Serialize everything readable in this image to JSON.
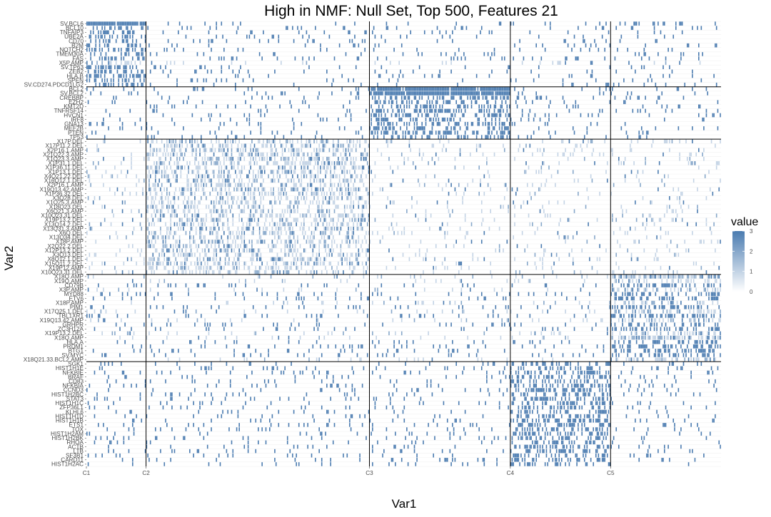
{
  "chart_data": {
    "type": "heatmap",
    "title": "High in NMF: Null Set, Top 500, Features 21",
    "xlabel": "Var1",
    "ylabel": "Var2",
    "legend_title": "value",
    "legend_ticks": [
      0,
      1,
      2,
      3
    ],
    "value_range": [
      0,
      3
    ],
    "colors": {
      "low": "#ffffff",
      "high": "#4a7bb0",
      "grid": "#ebebeb",
      "separator": "#000000"
    },
    "x_ticks": [
      {
        "label": "C1",
        "sample": 0
      },
      {
        "label": "C2",
        "sample": 47
      },
      {
        "label": "C3",
        "sample": 223
      },
      {
        "label": "C4",
        "sample": 334
      },
      {
        "label": "C5",
        "sample": 413
      }
    ],
    "n_samples": 500,
    "y_tick_labels": [
      "SV.BCL6",
      "BCL10",
      "TNFAIP3",
      "UBE2A",
      "CD70",
      "B2M",
      "NOTCH2",
      "TMEM30A",
      "FAS",
      "X5P.AMP",
      "SV.TP63",
      "ZEB2",
      "HLA.B",
      "SPEN",
      "SV.CD274.PDCD1LG2",
      "BCL2",
      "SV.BCL2",
      "CREBBP",
      "EZH2",
      "KMT2D",
      "TNFRSF14",
      "HVCN1",
      "IRF8",
      "GNA13",
      "MEF2B",
      "PTEN",
      "TP53",
      "X17P.DEL",
      "X17P11.2.DEL",
      "X2P16.1.AMP",
      "X21Q22.3.AMP",
      "X1Q23.3.AMP",
      "X1P31.1.DEL",
      "X1P36.11.DEL",
      "X1P13.1.DEL",
      "X4Q21.22.DEL",
      "X16Q12.1.DEL",
      "X2P16.1.AMP",
      "X19Q13.42.AMP",
      "X1P36.32.DEL",
      "X3Q28.DEL",
      "X1Q25.3.AMP",
      "X18Q23.DEL",
      "X6Q21.3.AMP",
      "X10Q23.31.DEL",
      "X19P13.2.DEL",
      "X13Q14.2.DEL",
      "X13Q31.3.AMP",
      "X6Q.DEL",
      "X13Q34.DEL",
      "X18P.AMP",
      "X2Q22.2.DEL",
      "X12P13.2.DEL",
      "X3Q13.DEL",
      "X8Q12.1.DEL",
      "X15Q11.2.DEL",
      "X19P12.AMP",
      "X10Q23.31.DEL",
      "X18Q.AMP",
      "X19Q.AMP",
      "CD79B",
      "X3P.AMP",
      "MYD88",
      "ETV6",
      "X18P.AMP",
      "PIM1",
      "X17Q25.1.DEL",
      "TBL1XR1",
      "X19Q13.42.AMP",
      "GRHPR",
      "ZC3H12A",
      "X19P13.2.DEL",
      "X18Q.AMP",
      "HLA.A",
      "PRDM1",
      "BTG1",
      "SV.MYC",
      "X18Q21.33.BCL2.AMP",
      "SGK1",
      "HIST1H1E",
      "NFKBIE",
      "BRAF",
      "CD83",
      "NFKBIA",
      "CCND3",
      "HIST1H2BC",
      "STAT3",
      "HIST1H1C",
      "ZFP36L1",
      "KLHL6",
      "HIST1H1D",
      "HIST1H1B",
      "ETS1",
      "TOX",
      "HIST1H2AM",
      "HIST1H2BK",
      "RHOA",
      "ACTB",
      "LTB",
      "SF3B1",
      "CARD11",
      "HIST1H2AC"
    ],
    "tick_label_step": 1,
    "clusters": [
      {
        "label": "C1",
        "start": 0,
        "end": 47
      },
      {
        "label": "C2",
        "start": 47,
        "end": 223
      },
      {
        "label": "C3",
        "start": 223,
        "end": 334
      },
      {
        "label": "C4",
        "start": 334,
        "end": 413
      },
      {
        "label": "C5",
        "start": 413,
        "end": 500
      }
    ],
    "feature_blocks": [
      {
        "name": "C1 features",
        "first": "SV.BCL6",
        "last": "SV.CD274.PDCD1LG2",
        "n": 15,
        "high_cluster": 0
      },
      {
        "name": "C3 features",
        "first": "BCL2",
        "last": "TP53",
        "n": 12,
        "high_cluster": 2
      },
      {
        "name": "C2 features",
        "first": "X17P.DEL",
        "last": "X10Q23.31.DEL",
        "n": 31,
        "high_cluster": 1
      },
      {
        "name": "C5 features",
        "first": "X18Q.AMP",
        "last": "X18Q21.33.BCL2.AMP",
        "n": 20,
        "high_cluster": 4
      },
      {
        "name": "C4 features",
        "first": "SGK1",
        "last": "HIST1H2AC",
        "n": 24,
        "high_cluster": 3
      }
    ],
    "cell_values_note": "",
    "grid": true,
    "legend_position": "right"
  }
}
